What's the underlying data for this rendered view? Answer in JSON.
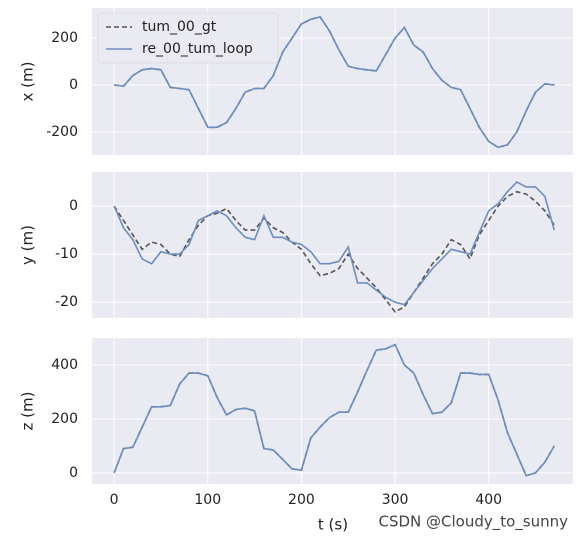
{
  "chart_data": [
    {
      "type": "line",
      "ylabel": "x (m)",
      "legend": "upper left",
      "grid": true,
      "xlim": [
        -23.6,
        490
      ],
      "ylim": [
        -298,
        328
      ],
      "yticks": [
        -200,
        0,
        200
      ],
      "x": [
        0,
        10,
        20,
        30,
        40,
        50,
        60,
        70,
        80,
        90,
        100,
        110,
        120,
        130,
        140,
        150,
        160,
        170,
        180,
        190,
        200,
        210,
        220,
        230,
        240,
        250,
        260,
        270,
        280,
        290,
        300,
        310,
        320,
        330,
        340,
        350,
        360,
        370,
        380,
        390,
        400,
        410,
        420,
        430,
        440,
        450,
        460,
        470
      ],
      "series": [
        {
          "name": "tum_00_gt",
          "color": "#555555",
          "dash": true,
          "values": [
            0,
            -5,
            40,
            65,
            70,
            65,
            -10,
            -15,
            -20,
            -100,
            -180,
            -180,
            -160,
            -100,
            -30,
            -15,
            -15,
            40,
            140,
            200,
            260,
            280,
            290,
            230,
            150,
            80,
            70,
            65,
            60,
            130,
            200,
            245,
            170,
            140,
            70,
            20,
            -10,
            -20,
            -100,
            -180,
            -240,
            -265,
            -255,
            -200,
            -110,
            -30,
            5,
            0
          ]
        },
        {
          "name": "re_00_tum_loop",
          "color": "#6c8ebf",
          "dash": false,
          "values": [
            0,
            -5,
            40,
            65,
            70,
            65,
            -10,
            -15,
            -20,
            -100,
            -180,
            -180,
            -160,
            -100,
            -30,
            -15,
            -15,
            40,
            140,
            200,
            260,
            280,
            290,
            230,
            150,
            80,
            70,
            65,
            60,
            130,
            200,
            245,
            170,
            140,
            70,
            20,
            -10,
            -20,
            -100,
            -180,
            -240,
            -265,
            -255,
            -200,
            -110,
            -30,
            5,
            0
          ]
        }
      ]
    },
    {
      "type": "line",
      "ylabel": "y (m)",
      "grid": true,
      "xlim": [
        -23.6,
        490
      ],
      "ylim": [
        -23.3,
        7.1
      ],
      "yticks": [
        -20,
        -10,
        0
      ],
      "x": [
        0,
        10,
        20,
        30,
        40,
        50,
        60,
        70,
        80,
        90,
        100,
        110,
        120,
        130,
        140,
        150,
        160,
        170,
        180,
        190,
        200,
        210,
        220,
        230,
        240,
        250,
        260,
        270,
        280,
        290,
        300,
        310,
        320,
        330,
        340,
        350,
        360,
        370,
        380,
        390,
        400,
        410,
        420,
        430,
        440,
        450,
        460,
        470
      ],
      "series": [
        {
          "color": "#555555",
          "dash": true,
          "values": [
            0,
            -3,
            -6,
            -9,
            -7.5,
            -8,
            -10,
            -10.5,
            -7,
            -4,
            -2,
            -1.5,
            -0.5,
            -3,
            -5,
            -5,
            -2.5,
            -4.5,
            -5.5,
            -7.5,
            -9,
            -12,
            -14.5,
            -14,
            -13,
            -10,
            -13,
            -15,
            -17,
            -19.5,
            -22,
            -21,
            -18,
            -15,
            -12,
            -10,
            -7,
            -8,
            -11,
            -6,
            -3,
            0,
            2,
            3,
            2.5,
            1,
            -1,
            -4
          ]
        },
        {
          "color": "#6c8ebf",
          "dash": false,
          "values": [
            0,
            -4.5,
            -7,
            -11,
            -12,
            -9.5,
            -10,
            -10,
            -8,
            -3,
            -2,
            -1,
            -2,
            -4.5,
            -6.5,
            -7,
            -2,
            -6.5,
            -6.5,
            -7.5,
            -8,
            -9.5,
            -12,
            -12,
            -11.5,
            -8.5,
            -16,
            -16,
            -17.5,
            -19,
            -20,
            -20.5,
            -18,
            -15.5,
            -13,
            -11,
            -9,
            -9.5,
            -10,
            -5.5,
            -1,
            0.5,
            3,
            5,
            4,
            4,
            2,
            -5
          ]
        }
      ]
    },
    {
      "type": "line",
      "ylabel": "z (m)",
      "xlabel": "t (s)",
      "grid": true,
      "xlim": [
        -23.6,
        490
      ],
      "xticks": [
        0,
        100,
        200,
        300,
        400
      ],
      "ylim": [
        -41,
        500
      ],
      "yticks": [
        0,
        200,
        400
      ],
      "x": [
        0,
        10,
        20,
        30,
        40,
        50,
        60,
        70,
        80,
        90,
        100,
        110,
        120,
        130,
        140,
        150,
        160,
        170,
        180,
        190,
        200,
        210,
        220,
        230,
        240,
        250,
        260,
        270,
        280,
        290,
        300,
        310,
        320,
        330,
        340,
        350,
        360,
        370,
        380,
        390,
        400,
        410,
        420,
        430,
        440,
        450,
        460,
        470
      ],
      "series": [
        {
          "color": "#555555",
          "dash": true,
          "values": [
            0,
            90,
            95,
            170,
            245,
            245,
            250,
            330,
            370,
            370,
            360,
            280,
            215,
            235,
            240,
            230,
            90,
            85,
            50,
            15,
            10,
            130,
            170,
            205,
            225,
            225,
            300,
            380,
            455,
            460,
            475,
            400,
            370,
            290,
            220,
            225,
            260,
            370,
            370,
            365,
            365,
            270,
            150,
            70,
            -10,
            0,
            40,
            100
          ]
        },
        {
          "color": "#6c8ebf",
          "dash": false,
          "values": [
            0,
            90,
            95,
            170,
            245,
            245,
            250,
            330,
            370,
            370,
            360,
            280,
            215,
            235,
            240,
            230,
            90,
            85,
            50,
            15,
            10,
            130,
            170,
            205,
            225,
            225,
            300,
            380,
            455,
            460,
            475,
            400,
            370,
            290,
            220,
            225,
            260,
            370,
            370,
            365,
            365,
            270,
            150,
            70,
            -10,
            0,
            40,
            100
          ]
        }
      ]
    }
  ],
  "watermark": "CSDN @Cloudy_to_sunny"
}
